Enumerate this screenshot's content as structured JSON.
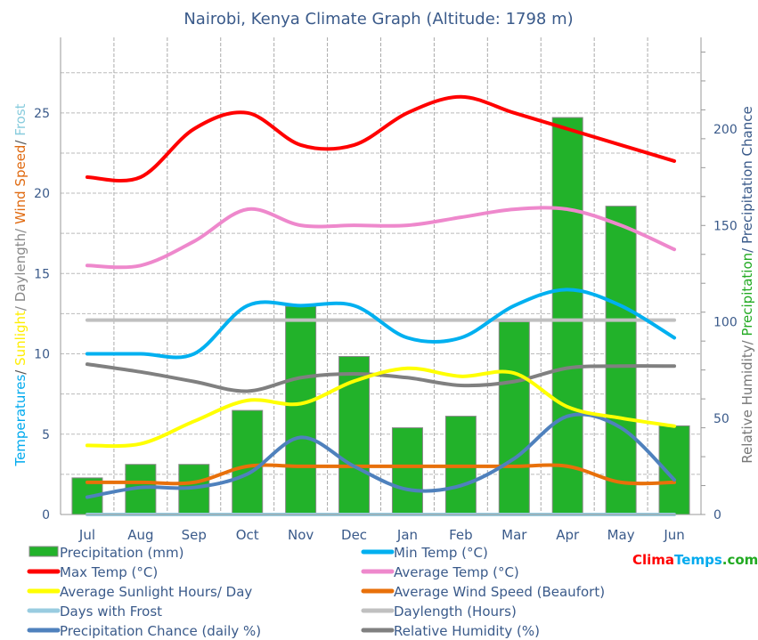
{
  "chart_data": {
    "type": "bar+line",
    "title": "Nairobi, Kenya Climate Graph (Altitude: 1798 m)",
    "categories": [
      "Jul",
      "Aug",
      "Sep",
      "Oct",
      "Nov",
      "Dec",
      "Jan",
      "Feb",
      "Mar",
      "Apr",
      "May",
      "Jun"
    ],
    "left_axis": {
      "label_parts": [
        {
          "text": "Temperatures",
          "color": "#00aaee"
        },
        {
          "text": "/ ",
          "color": "#555555"
        },
        {
          "text": "Sunlight",
          "color": "#ffee00"
        },
        {
          "text": "/ Daylength/ ",
          "color": "#888888"
        },
        {
          "text": "Wind Speed",
          "color": "#e06a10"
        },
        {
          "text": "/ ",
          "color": "#555555"
        },
        {
          "text": "Frost",
          "color": "#88ccdd"
        }
      ],
      "ylim": [
        0,
        29.7
      ],
      "ticks": [
        0,
        5,
        10,
        15,
        20,
        25
      ]
    },
    "right_axis": {
      "label_parts": [
        {
          "text": "Relative Humidity/ ",
          "color": "#777777"
        },
        {
          "text": "Precipitation",
          "color": "#22aa22"
        },
        {
          "text": "/ Precipitation Chance",
          "color": "#3a5a8a"
        }
      ],
      "ylim": [
        0,
        247.6
      ],
      "ticks": [
        0,
        50,
        100,
        150,
        200
      ]
    },
    "grid": true,
    "legend_placement": "bottom",
    "series": [
      {
        "name": "Precipitation (mm)",
        "type": "bar",
        "axis": "right",
        "color": "#22b22a",
        "values": [
          19,
          26,
          26,
          54,
          108,
          82,
          45,
          51,
          100,
          206,
          160,
          46
        ]
      },
      {
        "name": "Min Temp (°C)",
        "axis": "left",
        "color": "#00b0f0",
        "values": [
          10,
          10,
          10,
          13,
          13,
          13,
          11,
          11,
          13,
          14,
          13,
          11
        ]
      },
      {
        "name": "Max Temp (°C)",
        "axis": "left",
        "color": "#ff0000",
        "values": [
          21,
          21,
          24,
          25,
          23,
          23,
          25,
          26,
          25,
          24,
          23,
          22
        ]
      },
      {
        "name": "Average Temp (°C)",
        "axis": "left",
        "color": "#ee88cc",
        "values": [
          15.5,
          15.5,
          17,
          19,
          18,
          18,
          18,
          18.5,
          19,
          19,
          18,
          16.5
        ]
      },
      {
        "name": "Average Sunlight Hours/ Day",
        "axis": "left",
        "color": "#ffff00",
        "values": [
          4.3,
          4.4,
          5.8,
          7.1,
          6.9,
          8.3,
          9.1,
          8.6,
          8.8,
          6.7,
          6.0,
          5.5
        ]
      },
      {
        "name": "Average Wind Speed (Beaufort)",
        "axis": "left",
        "color": "#e8700a",
        "values": [
          2,
          2,
          2,
          3,
          3,
          3,
          3,
          3,
          3,
          3,
          2,
          2
        ]
      },
      {
        "name": "Days with Frost",
        "axis": "left",
        "color": "#99cce0",
        "values": [
          0,
          0,
          0,
          0,
          0,
          0,
          0,
          0,
          0,
          0,
          0,
          0
        ]
      },
      {
        "name": "Daylength (Hours)",
        "axis": "left",
        "color": "#c0c0c0",
        "values": [
          12.1,
          12.1,
          12.1,
          12.1,
          12.1,
          12.1,
          12.1,
          12.1,
          12.1,
          12.1,
          12.1,
          12.1
        ]
      },
      {
        "name": "Precipitation Chance (daily %)",
        "axis": "right",
        "color": "#4f81bd",
        "values": [
          9,
          14,
          14,
          21,
          40,
          25,
          13,
          15,
          29,
          51,
          45,
          18
        ]
      },
      {
        "name": "Relative Humidity (%)",
        "axis": "right",
        "color": "#808080",
        "values": [
          78,
          74,
          69,
          64,
          71,
          73,
          71,
          67,
          69,
          76,
          77,
          77
        ]
      }
    ]
  },
  "logo": {
    "parts": [
      {
        "text": "Clima",
        "color": "#ff0000"
      },
      {
        "text": "Temps",
        "color": "#00aaee"
      },
      {
        "text": ".com",
        "color": "#22aa22"
      }
    ]
  }
}
